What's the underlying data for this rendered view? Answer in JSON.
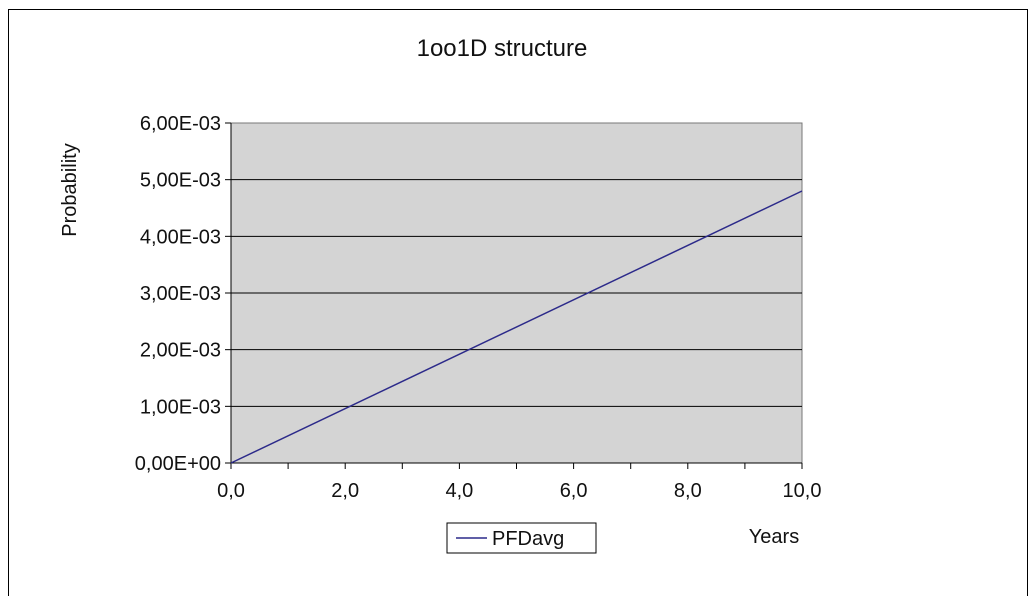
{
  "chart_data": {
    "type": "line",
    "title": "1oo1D structure",
    "xlabel": "Years",
    "ylabel": "Probability",
    "xlim": [
      0,
      10
    ],
    "ylim": [
      0,
      0.006
    ],
    "x_ticks": [
      "0,0",
      "2,0",
      "4,0",
      "6,0",
      "8,0",
      "10,0"
    ],
    "x_tick_values": [
      0,
      2,
      4,
      6,
      8,
      10
    ],
    "x_minor_step": 1,
    "y_ticks": [
      "0,00E+00",
      "1,00E-03",
      "2,00E-03",
      "3,00E-03",
      "4,00E-03",
      "5,00E-03",
      "6,00E-03"
    ],
    "y_tick_values": [
      0,
      0.001,
      0.002,
      0.003,
      0.004,
      0.005,
      0.006
    ],
    "grid": true,
    "plot_background": "#d4d4d4",
    "legend_placement": "bottom",
    "series": [
      {
        "name": "PFDavg",
        "color": "#2c2a8a",
        "x": [
          0,
          10
        ],
        "y": [
          0,
          0.0048
        ]
      }
    ]
  }
}
